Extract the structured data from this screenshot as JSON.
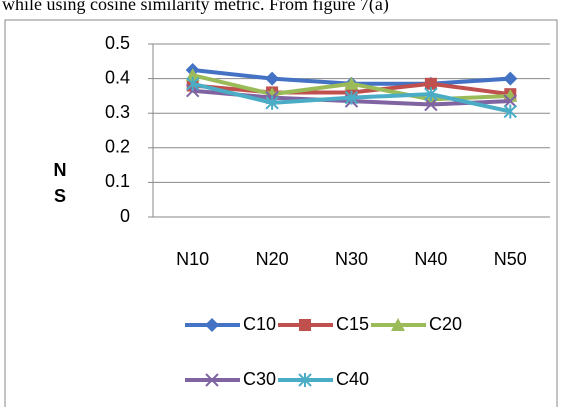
{
  "text_above": "while using cosine similarity metric. From figure 7(a)",
  "chart_data": {
    "type": "line",
    "ylabel": [
      "N",
      "S"
    ],
    "categories": [
      "N10",
      "N20",
      "N30",
      "N40",
      "N50"
    ],
    "series": [
      {
        "name": "C10",
        "color": "#4472c4",
        "marker": "diamond",
        "values": [
          0.425,
          0.4,
          0.385,
          0.385,
          0.4
        ]
      },
      {
        "name": "C15",
        "color": "#c0504d",
        "marker": "square",
        "values": [
          0.38,
          0.36,
          0.36,
          0.385,
          0.355
        ]
      },
      {
        "name": "C20",
        "color": "#9bbb59",
        "marker": "triangle",
        "values": [
          0.41,
          0.355,
          0.385,
          0.34,
          0.35
        ]
      },
      {
        "name": "C30",
        "color": "#8064a2",
        "marker": "x",
        "values": [
          0.365,
          0.345,
          0.335,
          0.325,
          0.335
        ]
      },
      {
        "name": "C40",
        "color": "#4bacc6",
        "marker": "star",
        "values": [
          0.385,
          0.33,
          0.345,
          0.355,
          0.305
        ]
      }
    ],
    "ylim": [
      0,
      0.5
    ],
    "yticks": [
      0,
      0.1,
      0.2,
      0.3,
      0.4,
      0.5
    ],
    "grid": true,
    "legend": "bottom"
  }
}
